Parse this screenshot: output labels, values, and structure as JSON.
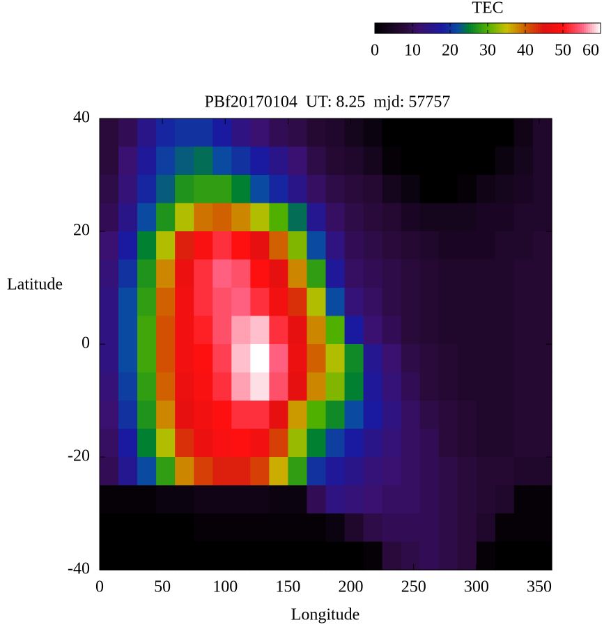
{
  "chart_data": {
    "type": "heatmap",
    "title": "PBf20170104  UT: 8.25  mjd: 57757",
    "x_label": "Longitude",
    "y_label": "Latitude",
    "xlim": [
      0,
      360
    ],
    "xticks": [
      0,
      50,
      100,
      150,
      200,
      250,
      300,
      350
    ],
    "ylim": [
      -40,
      40
    ],
    "yticks": [
      -40,
      -20,
      0,
      20,
      40
    ],
    "x": [
      7.5,
      22.5,
      37.5,
      52.5,
      67.5,
      82.5,
      97.5,
      112.5,
      127.5,
      142.5,
      157.5,
      172.5,
      187.5,
      202.5,
      217.5,
      232.5,
      247.5,
      262.5,
      277.5,
      292.5,
      307.5,
      322.5,
      337.5,
      352.5
    ],
    "y": [
      37.5,
      32.5,
      27.5,
      22.5,
      17.5,
      12.5,
      7.5,
      2.5,
      -2.5,
      -7.5,
      -12.5,
      -17.5,
      -22.5,
      -27.5,
      -32.5,
      -37.5
    ],
    "z": [
      [
        8,
        10,
        15,
        19,
        20,
        20,
        18,
        14,
        12,
        10,
        9,
        7,
        6,
        4,
        2,
        0,
        0,
        0,
        0,
        0,
        0,
        0,
        3,
        6
      ],
      [
        8,
        12,
        17,
        21,
        23,
        24,
        22,
        20,
        18,
        15,
        12,
        9,
        7,
        6,
        4,
        1,
        0,
        0,
        0,
        0,
        0,
        2,
        4,
        6
      ],
      [
        9,
        13,
        19,
        23,
        27,
        28,
        28,
        25,
        22,
        19,
        15,
        11,
        9,
        8,
        7,
        4,
        2,
        0,
        0,
        1,
        3,
        4,
        5,
        6
      ],
      [
        10,
        15,
        22,
        27,
        34,
        39,
        40,
        38,
        34,
        30,
        24,
        16,
        11,
        9,
        8,
        7,
        5,
        4,
        4,
        4,
        5,
        5,
        6,
        6
      ],
      [
        12,
        18,
        25,
        34,
        44,
        49,
        52,
        50,
        46,
        40,
        32,
        22,
        14,
        10,
        9,
        8,
        7,
        6,
        5,
        5,
        5,
        6,
        6,
        7
      ],
      [
        13,
        20,
        27,
        38,
        47,
        52,
        55,
        54,
        50,
        46,
        38,
        28,
        17,
        11,
        10,
        9,
        8,
        7,
        6,
        6,
        6,
        6,
        7,
        7
      ],
      [
        14,
        22,
        28,
        40,
        48,
        52,
        54,
        55,
        52,
        48,
        43,
        34,
        22,
        13,
        11,
        9,
        8,
        7,
        6,
        6,
        6,
        6,
        7,
        7
      ],
      [
        14,
        22,
        29,
        41,
        48,
        51,
        54,
        57,
        58,
        52,
        46,
        38,
        30,
        18,
        12,
        10,
        8,
        7,
        6,
        6,
        6,
        6,
        7,
        7
      ],
      [
        14,
        22,
        29,
        41,
        48,
        50,
        53,
        58,
        60,
        55,
        47,
        40,
        34,
        26,
        16,
        12,
        9,
        8,
        7,
        6,
        6,
        6,
        7,
        7
      ],
      [
        13,
        21,
        28,
        40,
        47,
        49,
        52,
        57,
        59,
        54,
        46,
        38,
        32,
        25,
        17,
        13,
        10,
        8,
        7,
        6,
        6,
        6,
        7,
        7
      ],
      [
        12,
        20,
        27,
        38,
        46,
        48,
        50,
        52,
        52,
        46,
        37,
        30,
        26,
        22,
        18,
        14,
        11,
        9,
        8,
        7,
        6,
        6,
        7,
        7
      ],
      [
        11,
        18,
        25,
        34,
        43,
        47,
        49,
        50,
        48,
        42,
        33,
        25,
        21,
        18,
        15,
        13,
        11,
        10,
        8,
        7,
        6,
        6,
        7,
        7
      ],
      [
        10,
        16,
        22,
        28,
        38,
        42,
        44,
        44,
        42,
        36,
        28,
        20,
        17,
        15,
        13,
        12,
        11,
        10,
        9,
        8,
        7,
        7,
        6,
        6
      ],
      [
        1,
        1,
        1,
        2,
        2,
        3,
        3,
        3,
        3,
        2,
        2,
        10,
        14,
        13,
        12,
        11,
        11,
        10,
        9,
        8,
        7,
        6,
        1,
        1
      ],
      [
        0,
        0,
        0,
        0,
        0,
        1,
        1,
        1,
        1,
        1,
        1,
        1,
        2,
        6,
        9,
        10,
        10,
        10,
        9,
        8,
        6,
        1,
        1,
        1
      ],
      [
        0,
        0,
        0,
        0,
        0,
        0,
        0,
        0,
        0,
        0,
        0,
        0,
        0,
        0,
        1,
        8,
        9,
        10,
        9,
        8,
        1,
        0,
        0,
        0
      ]
    ],
    "colorbar": {
      "label": "TEC",
      "lim": [
        0,
        60
      ],
      "ticks": [
        0,
        10,
        20,
        30,
        40,
        50,
        60
      ]
    },
    "colormap": [
      [
        0,
        "#000000"
      ],
      [
        8,
        "#2a0a3a"
      ],
      [
        12,
        "#3a1070"
      ],
      [
        18,
        "#1a1aa0"
      ],
      [
        22,
        "#0a4aa0"
      ],
      [
        25,
        "#008030"
      ],
      [
        30,
        "#50b000"
      ],
      [
        35,
        "#c8c000"
      ],
      [
        40,
        "#d06000"
      ],
      [
        45,
        "#e01010"
      ],
      [
        50,
        "#ff1010"
      ],
      [
        55,
        "#ff6080"
      ],
      [
        60,
        "#ffffff"
      ]
    ]
  }
}
